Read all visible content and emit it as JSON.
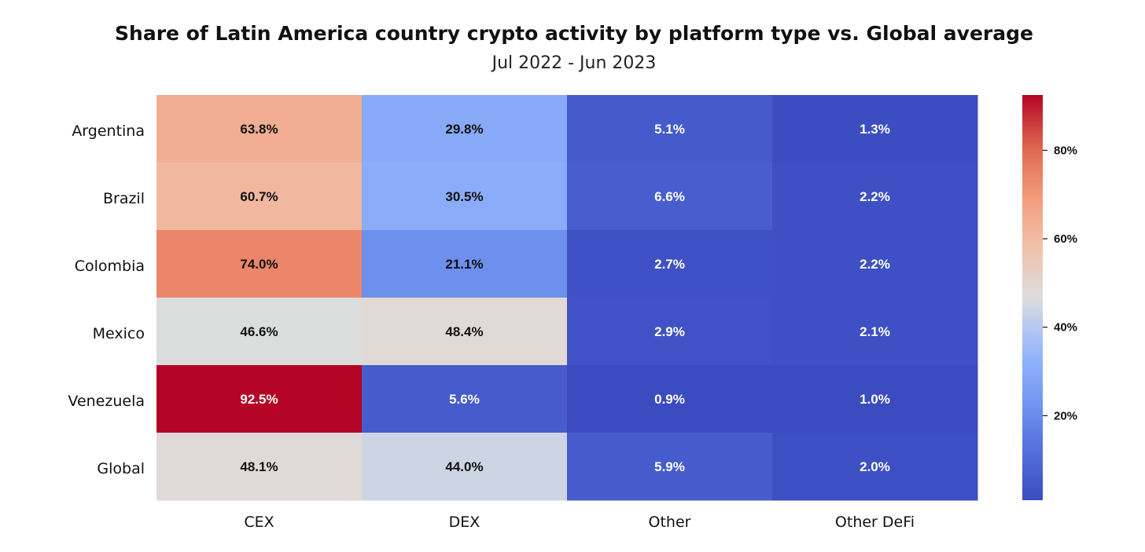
{
  "chart_data": {
    "type": "heatmap",
    "title": "Share of Latin America country crypto activity by platform type vs. Global average",
    "subtitle": "Jul 2022 - Jun 2023",
    "columns": [
      "CEX",
      "DEX",
      "Other",
      "Other DeFi"
    ],
    "rows": [
      "Argentina",
      "Brazil",
      "Colombia",
      "Mexico",
      "Venezuela",
      "Global"
    ],
    "values": [
      [
        63.8,
        29.8,
        5.1,
        1.3
      ],
      [
        60.7,
        30.5,
        6.6,
        2.2
      ],
      [
        74.0,
        21.1,
        2.7,
        2.2
      ],
      [
        46.6,
        48.4,
        2.9,
        2.1
      ],
      [
        92.5,
        5.6,
        0.9,
        1.0
      ],
      [
        48.1,
        44.0,
        5.9,
        2.0
      ]
    ],
    "labels": [
      [
        "63.8%",
        "29.8%",
        "5.1%",
        "1.3%"
      ],
      [
        "60.7%",
        "30.5%",
        "6.6%",
        "2.2%"
      ],
      [
        "74.0%",
        "21.1%",
        "2.7%",
        "2.2%"
      ],
      [
        "46.6%",
        "48.4%",
        "2.9%",
        "2.1%"
      ],
      [
        "92.5%",
        "5.6%",
        "0.9%",
        "1.0%"
      ],
      [
        "48.1%",
        "44.0%",
        "5.9%",
        "2.0%"
      ]
    ],
    "colorbar": {
      "min": 0.9,
      "max": 92.5,
      "ticks": [
        20,
        40,
        60,
        80
      ],
      "tick_labels": [
        "20%",
        "40%",
        "60%",
        "80%"
      ],
      "colormap": "coolwarm"
    }
  }
}
